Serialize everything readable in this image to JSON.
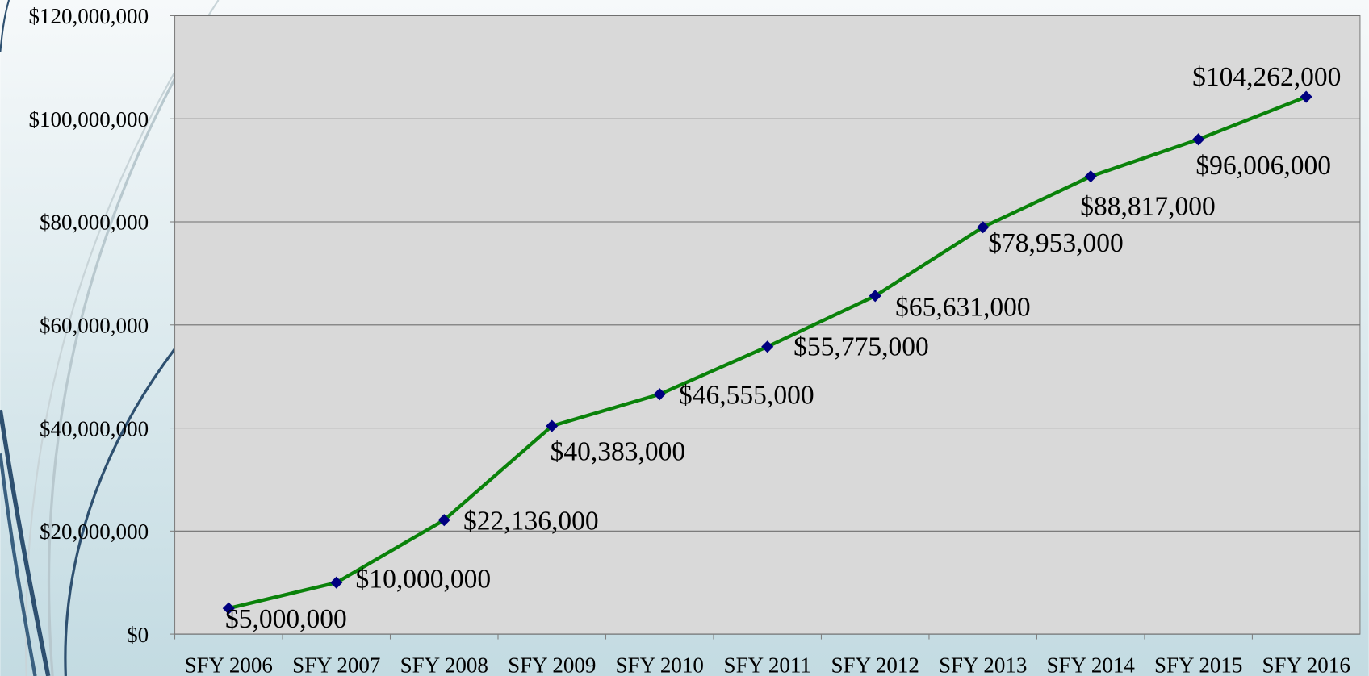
{
  "chart_data": {
    "type": "line",
    "categories": [
      "SFY 2006",
      "SFY 2007",
      "SFY 2008",
      "SFY 2009",
      "SFY 2010",
      "SFY 2011",
      "SFY 2012",
      "SFY 2013",
      "SFY 2014",
      "SFY 2015",
      "SFY 2016"
    ],
    "series": [
      {
        "color": "#0a820a",
        "marker_color": "#000080",
        "values": [
          5000000,
          10000000,
          22136000,
          40383000,
          46555000,
          55775000,
          65631000,
          78953000,
          88817000,
          96006000,
          104262000
        ],
        "value_labels": [
          "$5,000,000",
          "$10,000,000",
          "$22,136,000",
          "$40,383,000",
          "$46,555,000",
          "$55,775,000",
          "$65,631,000",
          "$78,953,000",
          "$88,817,000",
          "$96,006,000",
          "$104,262,000"
        ]
      }
    ],
    "ylim": [
      0,
      120000000
    ],
    "yticks": [
      {
        "value": 0,
        "label": "$0"
      },
      {
        "value": 20000000,
        "label": "$20,000,000"
      },
      {
        "value": 40000000,
        "label": "$40,000,000"
      },
      {
        "value": 60000000,
        "label": "$60,000,000"
      },
      {
        "value": 80000000,
        "label": "$80,000,000"
      },
      {
        "value": 100000000,
        "label": "$100,000,000"
      },
      {
        "value": 120000000,
        "label": "$120,000,000"
      }
    ],
    "grid": true
  }
}
